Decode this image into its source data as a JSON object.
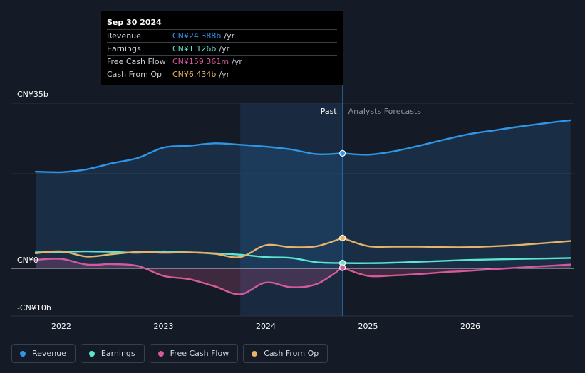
{
  "tooltip": {
    "date": "Sep 30 2024",
    "rows": [
      {
        "label": "Revenue",
        "value": "CN¥24.388b",
        "unit": "/yr",
        "color": "#2f95e6"
      },
      {
        "label": "Earnings",
        "value": "CN¥1.126b",
        "unit": "/yr",
        "color": "#5ce5cf"
      },
      {
        "label": "Free Cash Flow",
        "value": "CN¥159.361m",
        "unit": "/yr",
        "color": "#d65a9b"
      },
      {
        "label": "Cash From Op",
        "value": "CN¥6.434b",
        "unit": "/yr",
        "color": "#e7b36a"
      }
    ]
  },
  "legend": [
    {
      "label": "Revenue",
      "color": "#2f95e6"
    },
    {
      "label": "Earnings",
      "color": "#5ce5cf"
    },
    {
      "label": "Free Cash Flow",
      "color": "#d65a9b"
    },
    {
      "label": "Cash From Op",
      "color": "#e7b36a"
    }
  ],
  "chart_data": {
    "type": "line",
    "title": "",
    "xlabel": "",
    "ylabel": "",
    "ylim": [
      -10,
      35
    ],
    "xlim": [
      2021.6,
      2026.98
    ],
    "y_tick_labels": [
      {
        "value": 35,
        "label": "CN¥35b"
      },
      {
        "value": 0,
        "label": "CN¥0"
      },
      {
        "value": -10,
        "label": "-CN¥10b"
      }
    ],
    "x_tick_labels": [
      {
        "value": 2022,
        "label": "2022"
      },
      {
        "value": 2023,
        "label": "2023"
      },
      {
        "value": 2024,
        "label": "2024"
      },
      {
        "value": 2025,
        "label": "2025"
      },
      {
        "value": 2026,
        "label": "2026"
      }
    ],
    "divider": {
      "x": 2024.75,
      "past_label": "Past",
      "forecast_label": "Analysts Forecasts"
    },
    "highlight_x": [
      2023.75,
      2024.75
    ],
    "series": [
      {
        "name": "Revenue",
        "color": "#2f95e6",
        "area": true,
        "points": [
          [
            2021.75,
            20.5
          ],
          [
            2022.0,
            20.4
          ],
          [
            2022.25,
            21.0
          ],
          [
            2022.5,
            22.3
          ],
          [
            2022.75,
            23.4
          ],
          [
            2023.0,
            25.6
          ],
          [
            2023.25,
            26.0
          ],
          [
            2023.5,
            26.5
          ],
          [
            2023.75,
            26.2
          ],
          [
            2024.0,
            25.8
          ],
          [
            2024.25,
            25.2
          ],
          [
            2024.5,
            24.2
          ],
          [
            2024.75,
            24.388
          ],
          [
            2025.0,
            24.1
          ],
          [
            2025.25,
            24.8
          ],
          [
            2025.5,
            26.0
          ],
          [
            2025.75,
            27.3
          ],
          [
            2026.0,
            28.5
          ],
          [
            2026.25,
            29.3
          ],
          [
            2026.5,
            30.1
          ],
          [
            2026.75,
            30.8
          ],
          [
            2026.98,
            31.4
          ]
        ]
      },
      {
        "name": "Earnings",
        "color": "#5ce5cf",
        "area": false,
        "points": [
          [
            2021.75,
            3.4
          ],
          [
            2022.0,
            3.5
          ],
          [
            2022.25,
            3.6
          ],
          [
            2022.5,
            3.5
          ],
          [
            2022.75,
            3.3
          ],
          [
            2023.0,
            3.6
          ],
          [
            2023.25,
            3.4
          ],
          [
            2023.5,
            3.2
          ],
          [
            2023.75,
            2.9
          ],
          [
            2024.0,
            2.4
          ],
          [
            2024.25,
            2.2
          ],
          [
            2024.5,
            1.3
          ],
          [
            2024.75,
            1.126
          ],
          [
            2025.0,
            1.1
          ],
          [
            2025.25,
            1.2
          ],
          [
            2025.5,
            1.4
          ],
          [
            2025.75,
            1.6
          ],
          [
            2026.0,
            1.8
          ],
          [
            2026.5,
            2.0
          ],
          [
            2026.98,
            2.2
          ]
        ]
      },
      {
        "name": "Free Cash Flow",
        "color": "#d65a9b",
        "area": true,
        "points": [
          [
            2021.75,
            1.8
          ],
          [
            2022.0,
            2.0
          ],
          [
            2022.25,
            0.8
          ],
          [
            2022.5,
            0.9
          ],
          [
            2022.75,
            0.5
          ],
          [
            2023.0,
            -1.6
          ],
          [
            2023.25,
            -2.3
          ],
          [
            2023.5,
            -3.8
          ],
          [
            2023.75,
            -5.5
          ],
          [
            2024.0,
            -3.0
          ],
          [
            2024.25,
            -4.0
          ],
          [
            2024.5,
            -3.3
          ],
          [
            2024.75,
            0.159
          ],
          [
            2025.0,
            -1.6
          ],
          [
            2025.25,
            -1.5
          ],
          [
            2025.5,
            -1.2
          ],
          [
            2025.75,
            -0.8
          ],
          [
            2026.0,
            -0.5
          ],
          [
            2026.5,
            0.2
          ],
          [
            2026.98,
            0.8
          ]
        ]
      },
      {
        "name": "Cash From Op",
        "color": "#e7b36a",
        "area": false,
        "points": [
          [
            2021.75,
            3.2
          ],
          [
            2022.0,
            3.6
          ],
          [
            2022.25,
            2.5
          ],
          [
            2022.5,
            3.0
          ],
          [
            2022.75,
            3.5
          ],
          [
            2023.0,
            3.3
          ],
          [
            2023.25,
            3.4
          ],
          [
            2023.5,
            3.1
          ],
          [
            2023.75,
            2.4
          ],
          [
            2024.0,
            4.9
          ],
          [
            2024.25,
            4.5
          ],
          [
            2024.5,
            4.7
          ],
          [
            2024.75,
            6.434
          ],
          [
            2025.0,
            4.7
          ],
          [
            2025.25,
            4.6
          ],
          [
            2025.5,
            4.6
          ],
          [
            2025.75,
            4.5
          ],
          [
            2026.0,
            4.5
          ],
          [
            2026.5,
            5.0
          ],
          [
            2026.98,
            5.8
          ]
        ]
      }
    ]
  }
}
